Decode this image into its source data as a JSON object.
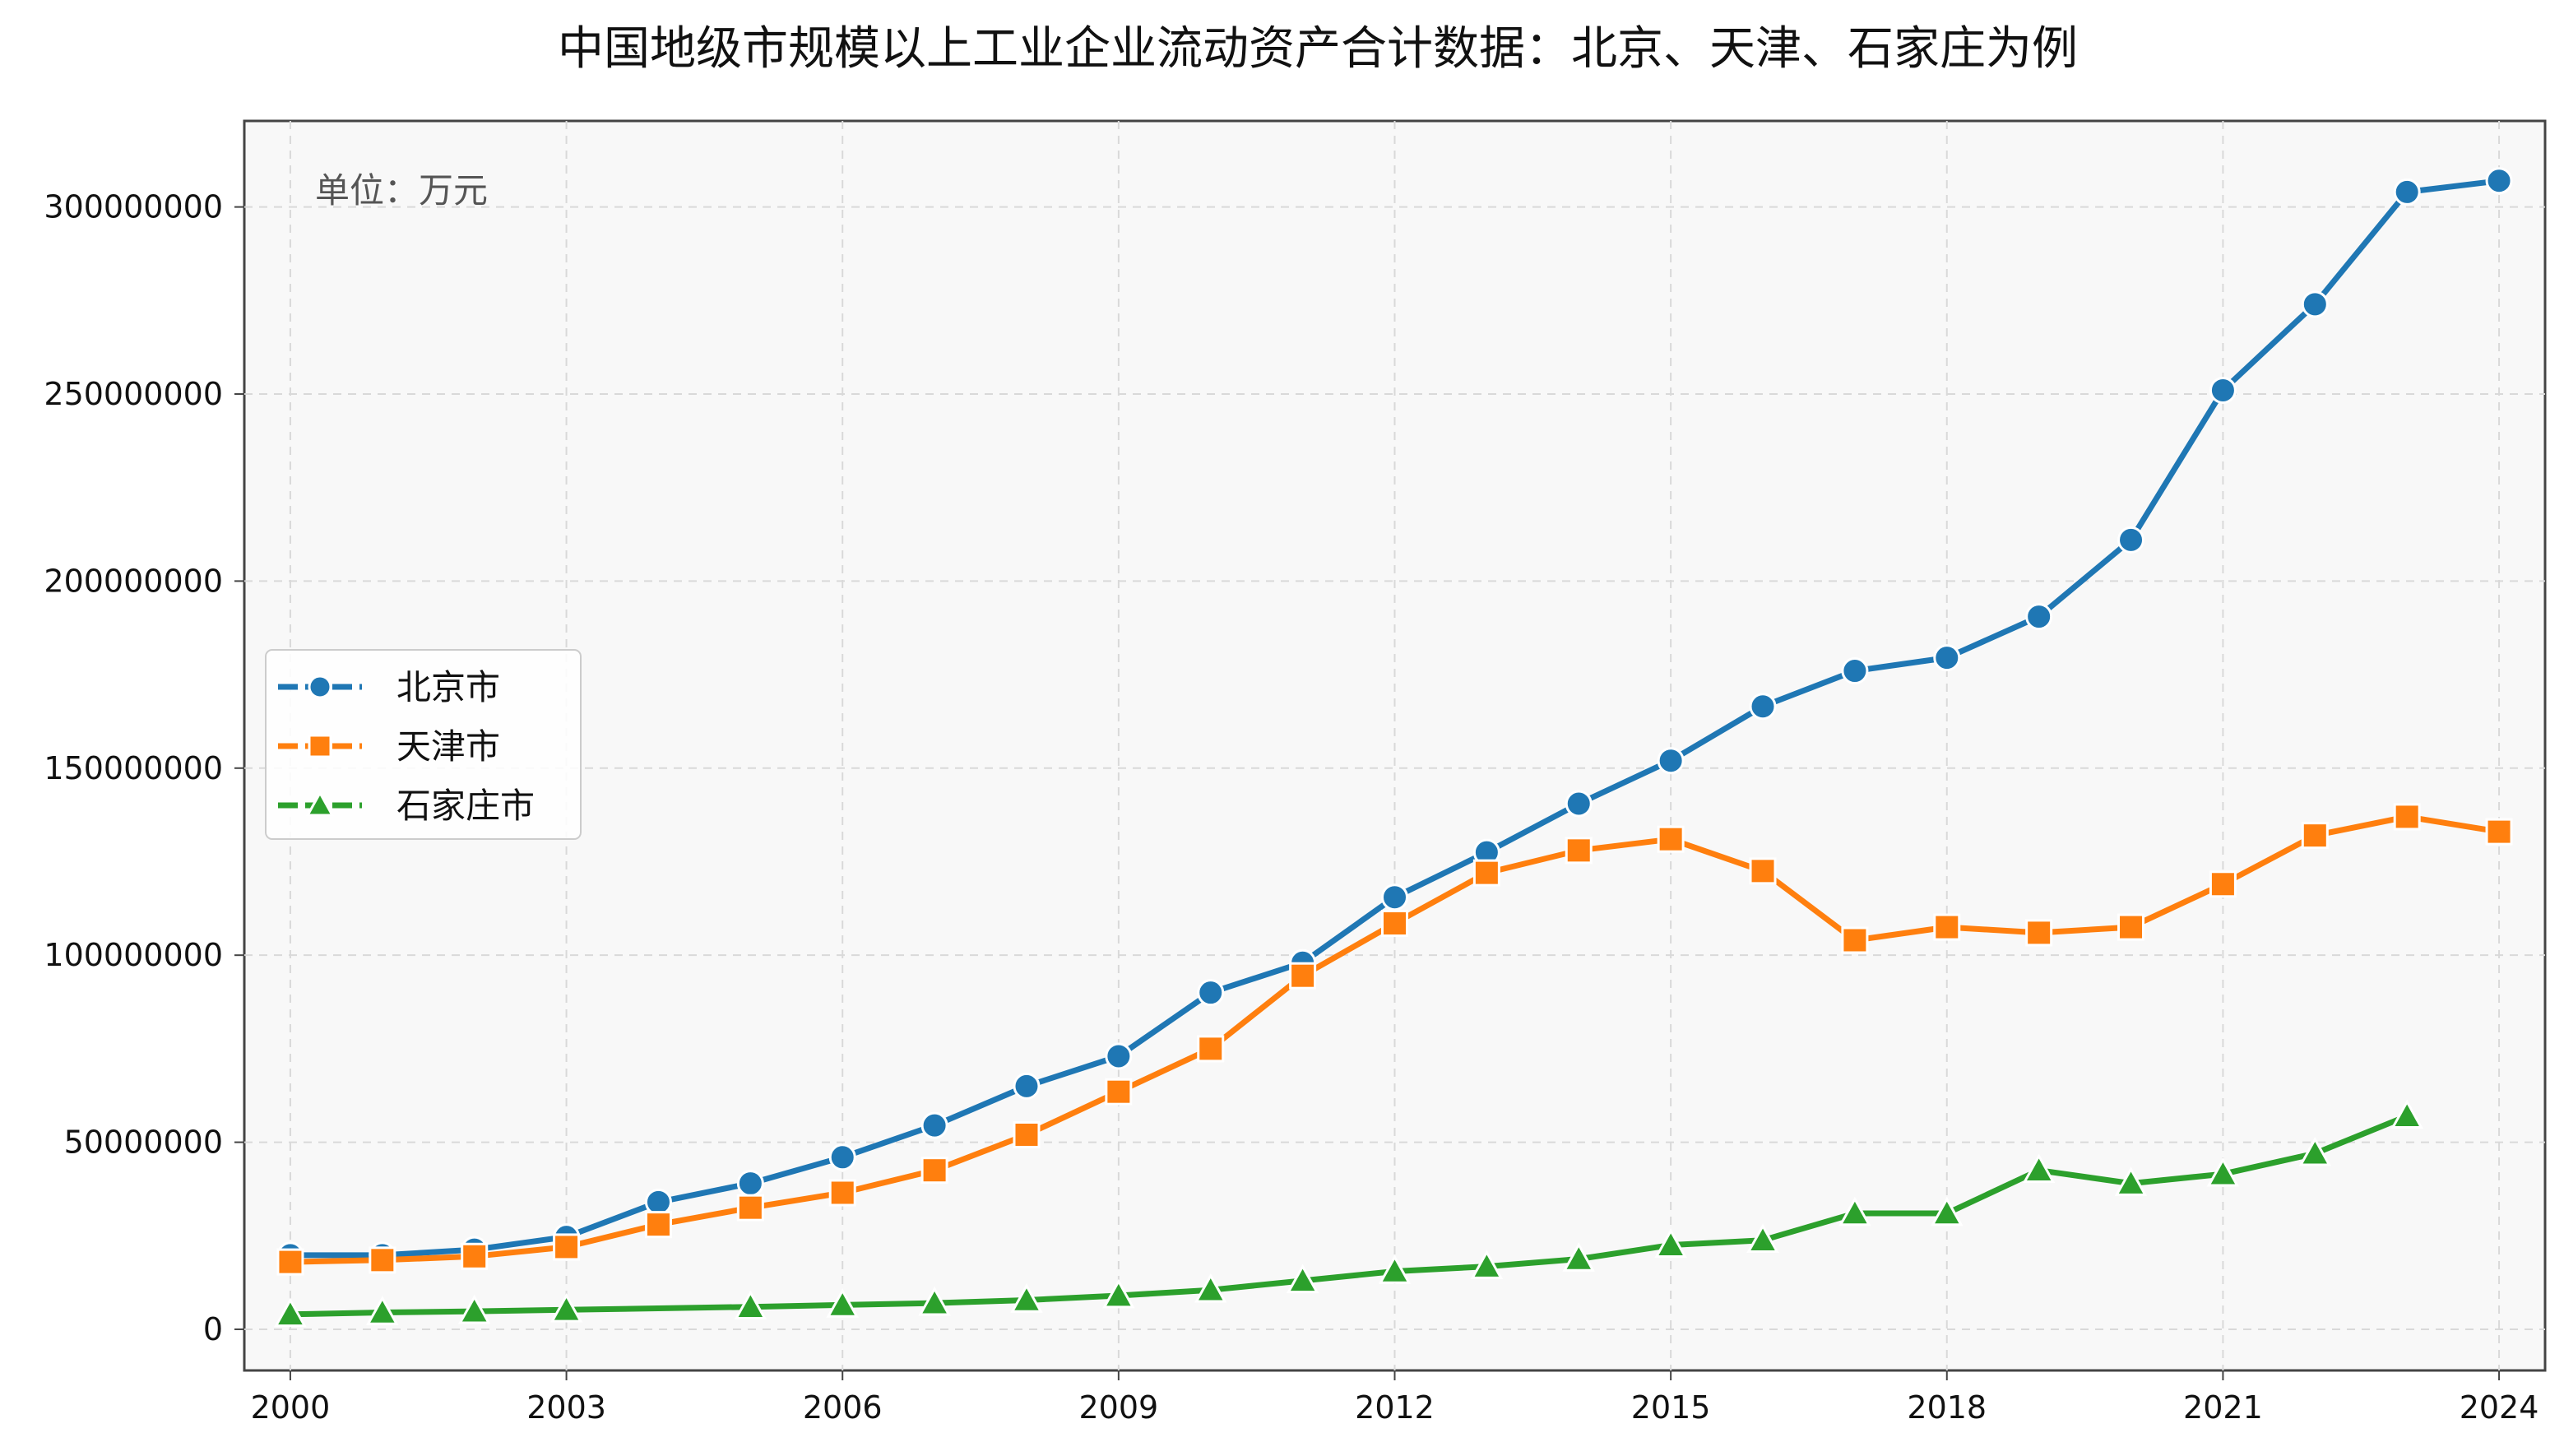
{
  "chart_data": {
    "type": "line",
    "title": "中国地级市规模以上工业企业流动资产合计数据：北京、天津、石家庄为例",
    "unit_label": "单位：万元",
    "xlabel": "",
    "ylabel": "",
    "xlim": [
      1999.5,
      2024.5
    ],
    "ylim": [
      -11000000,
      323000000
    ],
    "x_ticks": [
      2000,
      2003,
      2006,
      2009,
      2012,
      2015,
      2018,
      2021,
      2024
    ],
    "y_ticks": [
      0,
      50000000,
      100000000,
      150000000,
      200000000,
      250000000,
      300000000
    ],
    "grid": true,
    "legend_position": "center-left",
    "x": [
      2000,
      2001,
      2002,
      2003,
      2004,
      2005,
      2006,
      2007,
      2008,
      2009,
      2010,
      2011,
      2012,
      2013,
      2014,
      2015,
      2016,
      2017,
      2018,
      2019,
      2020,
      2021,
      2022,
      2023,
      2024
    ],
    "series": [
      {
        "name": "北京市",
        "color": "#1f77b4",
        "marker": "circle",
        "values": [
          19800000,
          19800000,
          21300000,
          24700000,
          34000000,
          39000000,
          46000000,
          54500000,
          65000000,
          73000000,
          90000000,
          98000000,
          115500000,
          127500000,
          140500000,
          152000000,
          166500000,
          176000000,
          179500000,
          190500000,
          211000000,
          251000000,
          274000000,
          304000000,
          307000000
        ]
      },
      {
        "name": "天津市",
        "color": "#ff7f0e",
        "marker": "square",
        "values": [
          18000000,
          18500000,
          19500000,
          22000000,
          28000000,
          32500000,
          36500000,
          42500000,
          52000000,
          63500000,
          75000000,
          94500000,
          108500000,
          122000000,
          128000000,
          131000000,
          122500000,
          104000000,
          107500000,
          106000000,
          107500000,
          119000000,
          132000000,
          137000000,
          133000000
        ]
      },
      {
        "name": "石家庄市",
        "color": "#2ca02c",
        "marker": "triangle",
        "values": [
          4000000,
          4500000,
          4800000,
          5200000,
          null,
          6000000,
          6500000,
          7000000,
          7800000,
          9000000,
          10500000,
          13000000,
          15500000,
          16800000,
          18800000,
          22500000,
          23800000,
          31000000,
          31000000,
          42500000,
          39000000,
          41500000,
          47000000,
          57000000,
          null
        ]
      }
    ]
  }
}
